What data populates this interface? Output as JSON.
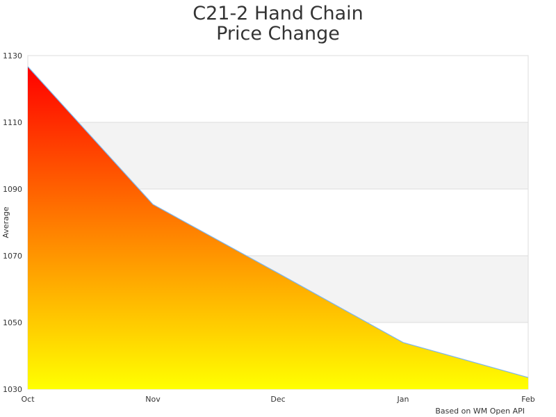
{
  "chart_data": {
    "type": "area",
    "title": [
      "C21-2 Hand Chain",
      "Price Change"
    ],
    "xlabel": "",
    "ylabel": "Average",
    "categories": [
      "Oct",
      "Nov",
      "Dec",
      "Jan",
      "Feb"
    ],
    "series": [
      {
        "values": [
          1126.7,
          1085.4,
          1064.8,
          1044.0,
          1033.5
        ]
      }
    ],
    "ylim": [
      1030,
      1130
    ],
    "yticks": [
      1030,
      1050,
      1070,
      1090,
      1110,
      1130
    ],
    "grid": true,
    "alternate_bands": true,
    "legend": "none",
    "credit": "Based on WM Open API",
    "colors": {
      "gradient_top": "#ff0000",
      "gradient_bottom": "#ffff00",
      "line": "#7cb5ec",
      "band": "#f3f3f3",
      "grid": "#dddddd"
    }
  }
}
